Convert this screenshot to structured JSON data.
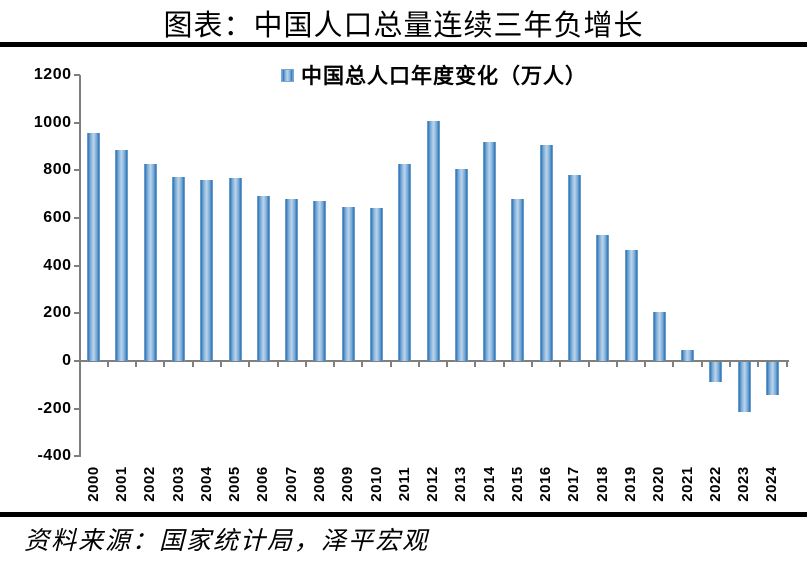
{
  "title": "图表：中国人口总量连续三年负增长",
  "source": "资料来源：国家统计局，泽平宏观",
  "chart_data": {
    "type": "bar",
    "title": "图表：中国人口总量连续三年负增长",
    "legend": "中国总人口年度变化（万人）",
    "legend_position": "top-center",
    "xlabel": "",
    "ylabel": "",
    "categories": [
      "2000",
      "2001",
      "2002",
      "2003",
      "2004",
      "2005",
      "2006",
      "2007",
      "2008",
      "2009",
      "2010",
      "2011",
      "2012",
      "2013",
      "2014",
      "2015",
      "2016",
      "2017",
      "2018",
      "2019",
      "2020",
      "2021",
      "2022",
      "2023",
      "2024"
    ],
    "values": [
      957,
      884,
      826,
      774,
      761,
      768,
      692,
      681,
      673,
      648,
      641,
      825,
      1006,
      804,
      920,
      680,
      906,
      779,
      530,
      467,
      204,
      48,
      -85,
      -208,
      -139
    ],
    "ylim": [
      -400,
      1200
    ],
    "ytick_step": 200,
    "yticks": [
      1200,
      1000,
      800,
      600,
      400,
      200,
      0,
      -200,
      -400
    ],
    "grid": false,
    "colors": {
      "bar_edge": "#2e75b6",
      "bar_mid": "#bcd5ec",
      "axis": "#7f7f7f",
      "text": "#000000",
      "rule": "#000000"
    }
  }
}
